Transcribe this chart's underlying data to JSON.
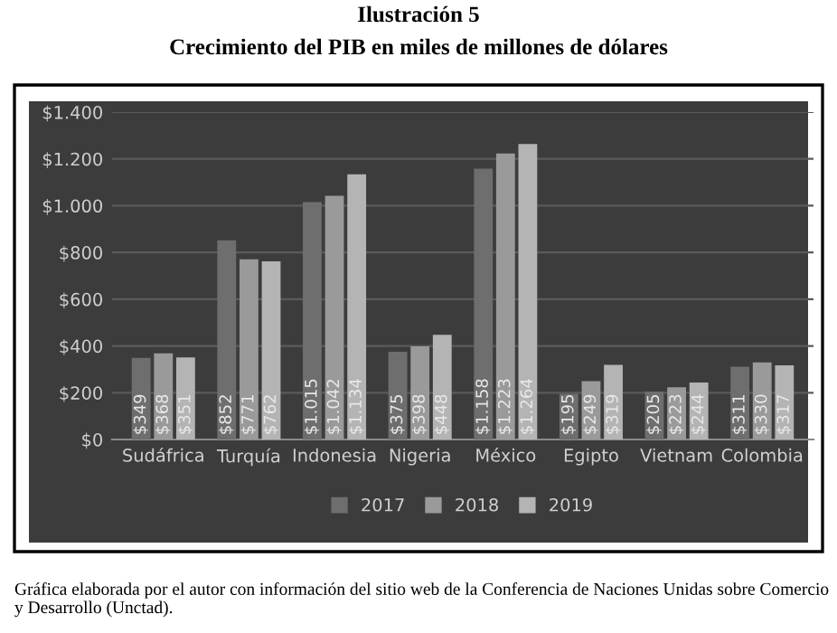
{
  "chart_data": {
    "type": "bar",
    "title": "Ilustración 5",
    "subtitle": "Crecimiento del PIB en miles de millones de dólares",
    "categories": [
      "Sudáfrica",
      "Turquía",
      "Indonesia",
      "Nigeria",
      "México",
      "Egipto",
      "Vietnam",
      "Colombia"
    ],
    "series": [
      {
        "name": "2017",
        "color": "#6e6e6e",
        "values": [
          349,
          852,
          1015,
          375,
          1158,
          195,
          205,
          311
        ],
        "value_labels": [
          "$349",
          "$852",
          "$1.015",
          "$375",
          "$1.158",
          "$195",
          "$205",
          "$311"
        ]
      },
      {
        "name": "2018",
        "color": "#9a9a9a",
        "values": [
          368,
          771,
          1042,
          398,
          1223,
          249,
          223,
          330
        ],
        "value_labels": [
          "$368",
          "$771",
          "$1.042",
          "$398",
          "$1.223",
          "$249",
          "$223",
          "$330"
        ]
      },
      {
        "name": "2019",
        "color": "#b4b4b4",
        "values": [
          351,
          762,
          1134,
          448,
          1264,
          319,
          244,
          317
        ],
        "value_labels": [
          "$351",
          "$762",
          "$1.134",
          "$448",
          "$1.264",
          "$319",
          "$244",
          "$317"
        ]
      }
    ],
    "ylim": [
      0,
      1400
    ],
    "yticks": [
      {
        "value": 0,
        "label": "$0"
      },
      {
        "value": 200,
        "label": "$200"
      },
      {
        "value": 400,
        "label": "$400"
      },
      {
        "value": 600,
        "label": "$600"
      },
      {
        "value": 800,
        "label": "$800"
      },
      {
        "value": 1000,
        "label": "$1.000"
      },
      {
        "value": 1200,
        "label": "$1.200"
      },
      {
        "value": 1400,
        "label": "$1.400"
      }
    ],
    "grid": "y",
    "legend": "bottom",
    "annotations": [
      "Gráfica elaborada por el autor con información del sitio web de la Conferencia de Naciones Unidas sobre Comercio y Desarrollo (Unctad)."
    ]
  }
}
